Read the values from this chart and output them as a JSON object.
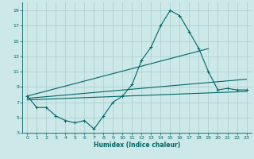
{
  "title": "",
  "xlabel": "Humidex (Indice chaleur)",
  "xlim": [
    -0.5,
    23.5
  ],
  "ylim": [
    3,
    20
  ],
  "yticks": [
    3,
    5,
    7,
    9,
    11,
    13,
    15,
    17,
    19
  ],
  "xticks": [
    0,
    1,
    2,
    3,
    4,
    5,
    6,
    7,
    8,
    9,
    10,
    11,
    12,
    13,
    14,
    15,
    16,
    17,
    18,
    19,
    20,
    21,
    22,
    23
  ],
  "bg_color": "#cce8e8",
  "grid_color": "#aacccc",
  "line_color": "#006666",
  "curve_x": [
    0,
    1,
    2,
    3,
    4,
    5,
    6,
    7,
    8,
    9,
    10,
    11,
    12,
    13,
    14,
    15,
    16,
    17,
    18,
    19,
    20,
    21,
    22,
    23
  ],
  "curve_y": [
    7.8,
    6.3,
    6.3,
    5.2,
    4.6,
    4.3,
    4.6,
    3.5,
    5.2,
    7.0,
    7.8,
    9.3,
    12.5,
    14.2,
    17.0,
    19.0,
    18.3,
    16.2,
    14.0,
    11.0,
    8.6,
    8.8,
    8.6,
    8.6
  ],
  "line1_x": [
    0,
    23
  ],
  "line1_y": [
    7.3,
    8.4
  ],
  "line2_x": [
    0,
    23
  ],
  "line2_y": [
    7.5,
    10.0
  ],
  "line3_x": [
    0,
    19
  ],
  "line3_y": [
    7.8,
    14.0
  ]
}
